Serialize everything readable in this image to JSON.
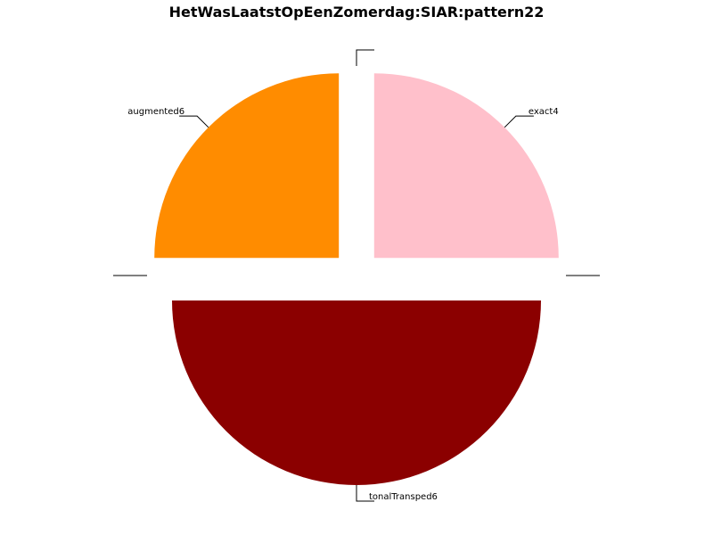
{
  "chart_data": {
    "type": "pie",
    "title": "HetWasLaatstOpEenZomerdag:SIAR:pattern22",
    "slices": [
      {
        "label": "exact4",
        "value": 25,
        "color": "#ffc0cb"
      },
      {
        "label": "",
        "value": 0,
        "color": "#ffffff"
      },
      {
        "label": "tonalTransped6",
        "value": 50,
        "color": "#8b0000"
      },
      {
        "label": "",
        "value": 0,
        "color": "#ffffff"
      },
      {
        "label": "augmented6",
        "value": 25,
        "color": "#ff8c00"
      },
      {
        "label": "",
        "value": 0,
        "color": "#ffffff"
      }
    ],
    "exploded": true,
    "legend": "none"
  }
}
